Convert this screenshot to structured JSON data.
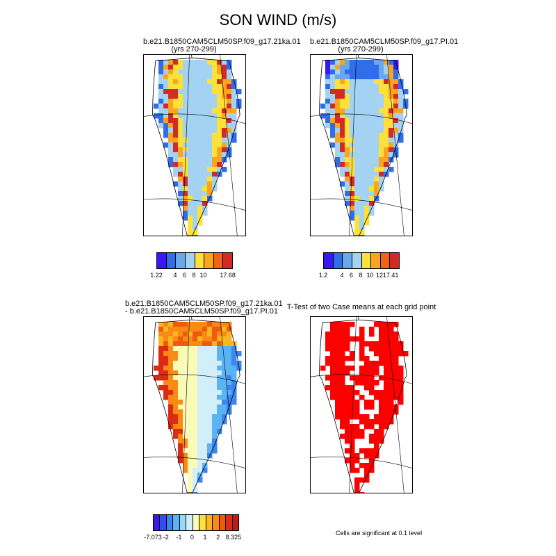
{
  "title": "SON WIND (m/s)",
  "panels": [
    {
      "title1": "b.e21.B1850CAM5CLM50SP.f09_g17.21ka.01",
      "title2": "(yrs 270-299)"
    },
    {
      "title1": "b.e21.B1850CAM5CLM50SP.f09_g17.PI.01",
      "title2": "(yrs 270-299)"
    },
    {
      "title1": "b.e21.B1850CAM5CLM50SP.f09_g17.21ka.01",
      "title2": "- b.e21.B1850CAM5CLM50SP.f09_g17.PI.01"
    },
    {
      "title1": "T-Test of two Case means at each grid point",
      "title2": ""
    }
  ],
  "colorbars": [
    {
      "colors": [
        "#3a17f5",
        "#2f6ee8",
        "#6aa8ec",
        "#a3d2f3",
        "#fde13a",
        "#fba51e",
        "#f26314",
        "#d42a25"
      ],
      "labels": [
        "1.22",
        "4",
        "6",
        "8",
        "10",
        "17.68"
      ]
    },
    {
      "colors": [
        "#3a17f5",
        "#2f6ee8",
        "#6aa8ec",
        "#a3d2f3",
        "#fde13a",
        "#fba51e",
        "#f26314",
        "#d42a25"
      ],
      "labels": [
        "1.2",
        "4",
        "6",
        "8",
        "10",
        "12",
        "17.41"
      ]
    },
    {
      "colors": [
        "#3a17f5",
        "#2f4ff0",
        "#3b86f0",
        "#5ab4f4",
        "#9ad8f8",
        "#d3eefb",
        "#fbfbb8",
        "#fde13a",
        "#fbb61e",
        "#f98a14",
        "#ef5a10",
        "#dc2a14",
        "#c21a1a"
      ],
      "labels": [
        "-7.073",
        "-2",
        "-1",
        "0",
        "1",
        "2",
        "8.325"
      ]
    }
  ],
  "significance_note": "Cells are significant at 0.1 level",
  "colors": {
    "significant": "#ff0000",
    "coast": "#000000"
  }
}
